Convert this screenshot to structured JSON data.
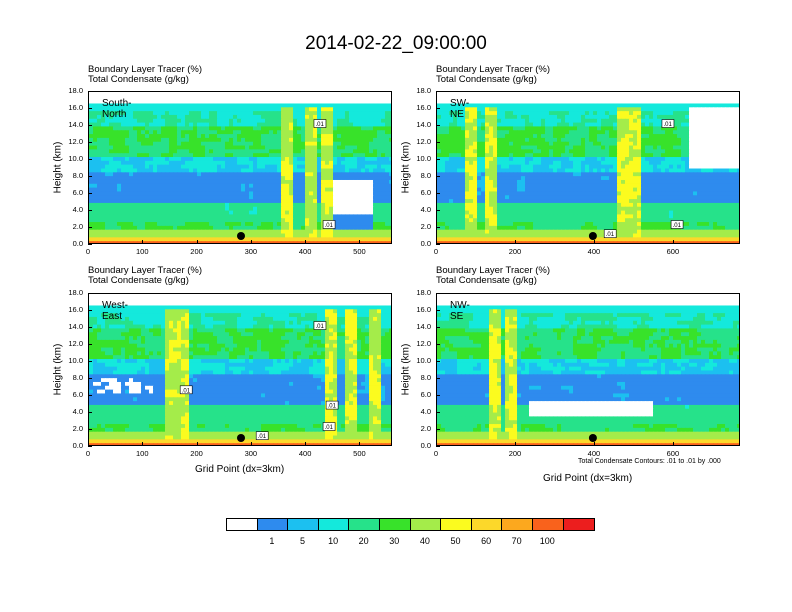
{
  "title": "2014-02-22_09:00:00",
  "colors": {
    "levels": [
      "#ffffff",
      "#2e8bee",
      "#1cc0f0",
      "#14e9dc",
      "#26e28a",
      "#38e22a",
      "#a4ec4a",
      "#fbfb1f",
      "#fcd82a",
      "#fca81e",
      "#f9621c",
      "#ec1e1e"
    ]
  },
  "colorbar": {
    "labels": [
      "1",
      "5",
      "10",
      "20",
      "30",
      "40",
      "50",
      "60",
      "70",
      "100"
    ]
  },
  "contour_note": "Total Condensate Contours: .01 to .01 by .000",
  "chart_data": [
    {
      "type": "heatmap",
      "label": "South-North",
      "title_lines": [
        "Boundary Layer Tracer    (%)",
        "Total Condensate   (g/kg)"
      ],
      "ylabel": "Height (km)",
      "xlabel": "",
      "xlim": [
        0,
        560
      ],
      "ylim": [
        0,
        18
      ],
      "xticks": [
        "0",
        "100",
        "200",
        "300",
        "400",
        "500"
      ],
      "yticks": [
        "0.0",
        "2.0",
        "4.0",
        "6.0",
        "8.0",
        "10.0",
        "12.0",
        "14.0",
        "16.0",
        "18.0"
      ],
      "contour_labels": [
        ".01",
        ".01"
      ],
      "marker_x": 280
    },
    {
      "type": "heatmap",
      "label": "SW-NE",
      "title_lines": [
        "Boundary Layer Tracer    (%)",
        "Total Condensate   (g/kg)"
      ],
      "ylabel": "Height (km)",
      "xlabel": "",
      "xlim": [
        0,
        770
      ],
      "ylim": [
        0,
        18
      ],
      "xticks": [
        "0",
        "200",
        "400",
        "600"
      ],
      "yticks": [
        "0.0",
        "2.0",
        "4.0",
        "6.0",
        "8.0",
        "10.0",
        "12.0",
        "14.0",
        "16.0",
        "18.0"
      ],
      "contour_labels": [
        ".01",
        ".01",
        ".01"
      ],
      "marker_x": 395
    },
    {
      "type": "heatmap",
      "label": "West-East",
      "title_lines": [
        "Boundary Layer Tracer    (%)",
        "Total Condensate   (g/kg)"
      ],
      "ylabel": "Height (km)",
      "xlabel": "Grid Point (dx=3km)",
      "xlim": [
        0,
        560
      ],
      "ylim": [
        0,
        18
      ],
      "xticks": [
        "0",
        "100",
        "200",
        "300",
        "400",
        "500"
      ],
      "yticks": [
        "0.0",
        "2.0",
        "4.0",
        "6.0",
        "8.0",
        "10.0",
        "12.0",
        "14.0",
        "16.0",
        "18.0"
      ],
      "contour_labels": [
        ".01",
        ".01",
        ".01",
        ".01",
        ".01"
      ],
      "marker_x": 280
    },
    {
      "type": "heatmap",
      "label": "NW-SE",
      "title_lines": [
        "Boundary Layer Tracer    (%)",
        "Total Condensate   (g/kg)"
      ],
      "ylabel": "Height (km)",
      "xlabel": "Grid Point (dx=3km)",
      "xlim": [
        0,
        770
      ],
      "ylim": [
        0,
        18
      ],
      "xticks": [
        "0",
        "200",
        "400",
        "600"
      ],
      "yticks": [
        "0.0",
        "2.0",
        "4.0",
        "6.0",
        "8.0",
        "10.0",
        "12.0",
        "14.0",
        "16.0",
        "18.0"
      ],
      "contour_labels": [],
      "marker_x": 395
    }
  ]
}
